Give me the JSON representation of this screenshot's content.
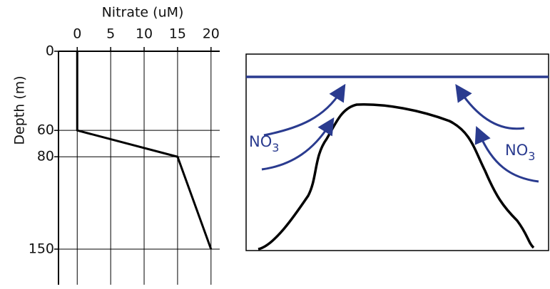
{
  "chart_data": {
    "type": "line",
    "x_label": "Nitrate (uM)",
    "y_label": "Depth (m)",
    "series": [
      {
        "x": [
          0,
          0,
          15,
          20
        ],
        "values": [
          0,
          60,
          80,
          150
        ],
        "color": "#000000"
      }
    ],
    "xlim": [
      -2.8,
      21.3
    ],
    "ylim": [
      0,
      177
    ],
    "xticks": [
      0,
      5,
      10,
      15,
      20
    ],
    "yticks": [
      0,
      60,
      80,
      150
    ],
    "y_inverted": true,
    "x_axis_position": "top",
    "grid": true
  },
  "diagram": {
    "labels": [
      {
        "text": "NO",
        "sub": "3"
      },
      {
        "text": "NO",
        "sub": "3"
      }
    ]
  }
}
